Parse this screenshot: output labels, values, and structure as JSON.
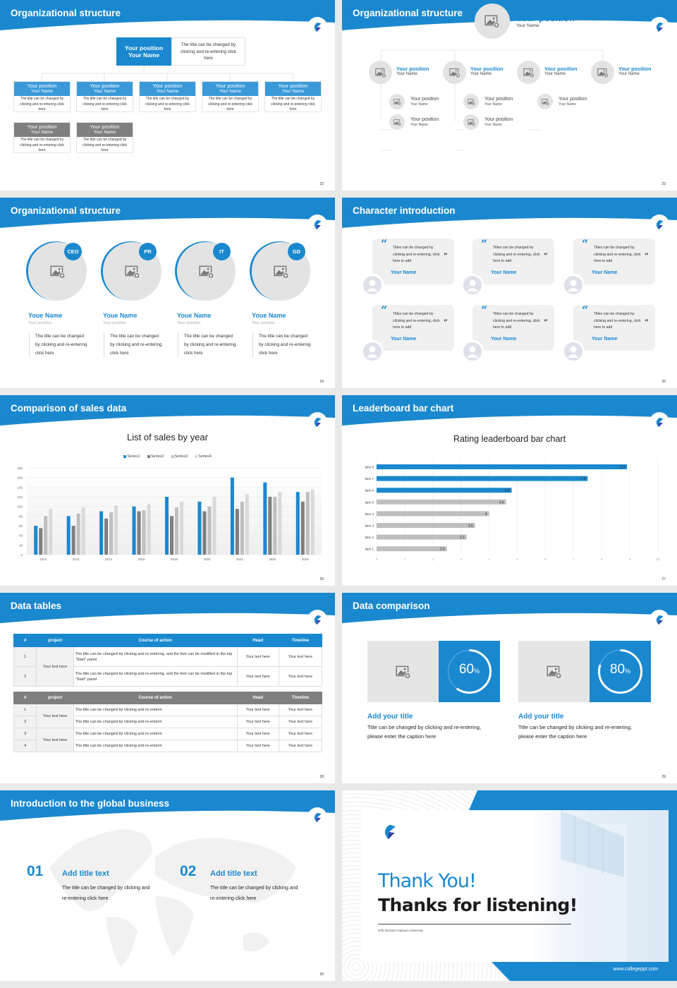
{
  "colors": {
    "brand": "#1a88cf",
    "gray_box": "#7f7f7f",
    "light_box": "#e6e5e6"
  },
  "s22": {
    "title": "Organizational structure",
    "page": "22",
    "top": {
      "position": "Your position",
      "name": "Your Name",
      "desc": "The title can be changed by clicking and re-entering click here"
    },
    "boxes": [
      {
        "position": "Your position",
        "name": "Your Name",
        "desc": "The title can be changed by clicking and re-entering click here",
        "color": "blue"
      },
      {
        "position": "Your position",
        "name": "Your Name",
        "desc": "The title can be changed by clicking and re-entering click here",
        "color": "blue"
      },
      {
        "position": "Your position",
        "name": "Your Name",
        "desc": "The title can be changed by clicking and re-entering click here",
        "color": "blue"
      },
      {
        "position": "Your position",
        "name": "Your Name",
        "desc": "The title can be changed by clicking and re-entering click here",
        "color": "blue"
      },
      {
        "position": "Your position",
        "name": "Your Name",
        "desc": "The title can be changed by clicking and re-entering click here",
        "color": "blue"
      },
      {
        "position": "Your position",
        "name": "Your Name",
        "desc": "The title can be changed by clicking and re-entering click here",
        "color": "gray"
      },
      {
        "position": "Your position",
        "name": "Your Name",
        "desc": "The title can be changed by clicking and re-entering click here",
        "color": "gray"
      }
    ]
  },
  "s23": {
    "title": "Organizational structure",
    "page": "23",
    "top": {
      "position": "Your position",
      "name": "Your Name"
    },
    "level2": [
      {
        "position": "Your position",
        "name": "Your Name"
      },
      {
        "position": "Your position",
        "name": "Your Name"
      },
      {
        "position": "Your position",
        "name": "Your Name"
      },
      {
        "position": "Your position",
        "name": "Your Name"
      }
    ],
    "level3": [
      {
        "position": "Your position",
        "name": "Your Name"
      },
      {
        "position": "Your position",
        "name": "Your Name"
      },
      {
        "position": "Your position",
        "name": "Your Name"
      },
      {
        "position": "Your position",
        "name": "Your Name"
      },
      {
        "position": "Your position",
        "name": "Your Name"
      }
    ]
  },
  "s24": {
    "title": "Organizational structure",
    "page": "24",
    "people": [
      {
        "badge": "CEO",
        "name": "Youe Name",
        "position": "Your position",
        "desc": "The title can be changed by clicking and re-entering click here"
      },
      {
        "badge": "PR",
        "name": "Youe Name",
        "position": "Your position",
        "desc": "The title can be changed by clicking and re-entering click here"
      },
      {
        "badge": "IT",
        "name": "Youe Name",
        "position": "Your position",
        "desc": "The title can be changed by clicking and re-entering click here"
      },
      {
        "badge": "GD",
        "name": "Youe Name",
        "position": "Your position",
        "desc": "The title can be changed by clicking and re-entering click here"
      }
    ]
  },
  "s25": {
    "title": "Character introduction",
    "page": "25",
    "cards": [
      {
        "quote": "Titles can be changed by clicking and re-entering, click here to add",
        "name": "Your Name"
      },
      {
        "quote": "Titles can be changed by clicking and re-entering, click here to add",
        "name": "Your Name"
      },
      {
        "quote": "Titles can be changed by clicking and re-entering, click here to add",
        "name": "Your Name"
      },
      {
        "quote": "Titles can be changed by clicking and re-entering, click here to add",
        "name": "Your Name"
      },
      {
        "quote": "Titles can be changed by clicking and re-entering, click here to add",
        "name": "Your Name"
      },
      {
        "quote": "Titles can be changed by clicking and re-entering, click here to add",
        "name": "Your Name"
      }
    ],
    "open_quote": "“",
    "close_quote": "”"
  },
  "s26": {
    "title": "Comparison of sales data",
    "page": "26"
  },
  "s27": {
    "title": "Leaderboard bar chart",
    "page": "27"
  },
  "s28": {
    "title": "Data tables",
    "page": "28",
    "headers": [
      "#",
      "project",
      "Course of action",
      "Head",
      "Timeline"
    ],
    "table1": {
      "project": "Your text here",
      "rows": [
        {
          "n": "1",
          "action": "The title can be changed by clicking and re-entering, and the font can be modified in the top \"Start\" panel",
          "head": "Your text here",
          "timeline": "Your text here"
        },
        {
          "n": "2",
          "action": "The title can be changed by clicking and re-entering, and the font can be modified in the top \"Start\" panel",
          "head": "Your text here",
          "timeline": "Your text here"
        }
      ]
    },
    "table2": {
      "projects": [
        "Your text here",
        "Your text here"
      ],
      "rows": [
        {
          "n": "1",
          "action": "The title can be changed by clicking and re-enterin",
          "head": "Your text here",
          "timeline": "Your text here"
        },
        {
          "n": "2",
          "action": "The title can be changed by clicking and re-enterin",
          "head": "Your text here",
          "timeline": "Your text here"
        },
        {
          "n": "3",
          "action": "The title can be changed by clicking and re-enterin",
          "head": "Your text here",
          "timeline": "Your text here"
        },
        {
          "n": "4",
          "action": "The title can be changed by clicking and re-enterin",
          "head": "Your text here",
          "timeline": "Your text here"
        }
      ]
    }
  },
  "s29": {
    "title": "Data comparison",
    "page": "29",
    "items": [
      {
        "value": 60,
        "value_text": "60",
        "unit": "%",
        "title": "Add your title",
        "desc": "Title can be changed by clicking and re-entering, please enter the caption here"
      },
      {
        "value": 80,
        "value_text": "80",
        "unit": "%",
        "title": "Add your title",
        "desc": "Title can be changed by clicking and re-entering, please enter the caption here"
      }
    ]
  },
  "s30": {
    "title": "Introduction to the global business",
    "page": "30",
    "items": [
      {
        "num": "01",
        "title": "Add title text",
        "desc": "The title can be changed by clicking and re-entering click here"
      },
      {
        "num": "02",
        "title": "Add title text",
        "desc": "The title can be changed by clicking and re-entering click here"
      }
    ]
  },
  "s31": {
    "thank": "Thank You!",
    "thanks": "Thanks for listening!",
    "university": "Gifu Shotoku Gakuen University",
    "url": "www.collegeppt.com"
  },
  "chart_data": [
    {
      "type": "bar",
      "title": "List of sales by year",
      "categories": [
        "2010",
        "2012",
        "2014",
        "2016",
        "2018",
        "2020",
        "2022",
        "2024",
        "2026"
      ],
      "series": [
        {
          "name": "Series1",
          "color": "#1a88cf",
          "values": [
            60,
            80,
            90,
            100,
            120,
            110,
            160,
            150,
            130
          ]
        },
        {
          "name": "Series2",
          "color": "#7f7f7f",
          "values": [
            55,
            60,
            75,
            90,
            80,
            90,
            95,
            120,
            110
          ]
        },
        {
          "name": "Series3",
          "color": "#bfbfbf",
          "values": [
            80,
            85,
            88,
            92,
            98,
            100,
            110,
            120,
            130
          ]
        },
        {
          "name": "Series4",
          "color": "#d9d9d9",
          "values": [
            95,
            98,
            102,
            105,
            110,
            120,
            125,
            130,
            135
          ]
        }
      ],
      "yticks": [
        "0",
        "20",
        "40",
        "60",
        "80",
        "100",
        "120",
        "140",
        "160",
        "180"
      ],
      "ylim": [
        0,
        180
      ],
      "legend": "top",
      "grid": true
    },
    {
      "type": "bar",
      "orientation": "horizontal",
      "title": "Rating leaderboard bar chart",
      "categories": [
        "Item 8",
        "Item 7",
        "Item 6",
        "Item 5",
        "Item 4",
        "Item 3",
        "Item 2",
        "Item 1"
      ],
      "values": [
        8.9,
        7.5,
        4.8,
        4.6,
        4,
        3.5,
        3.2,
        2.5
      ],
      "labels": [
        "8.9",
        "7.5",
        "4.8",
        "4.6",
        "4",
        "3.5",
        "3.2",
        "2.5"
      ],
      "highlight_color": "#1a88cf",
      "base_color": "#bfbfbf",
      "xticks": [
        "0",
        "1",
        "2",
        "3",
        "4",
        "5",
        "6",
        "7",
        "8",
        "9",
        "10"
      ],
      "xlim": [
        0,
        10
      ],
      "grid": true
    }
  ]
}
